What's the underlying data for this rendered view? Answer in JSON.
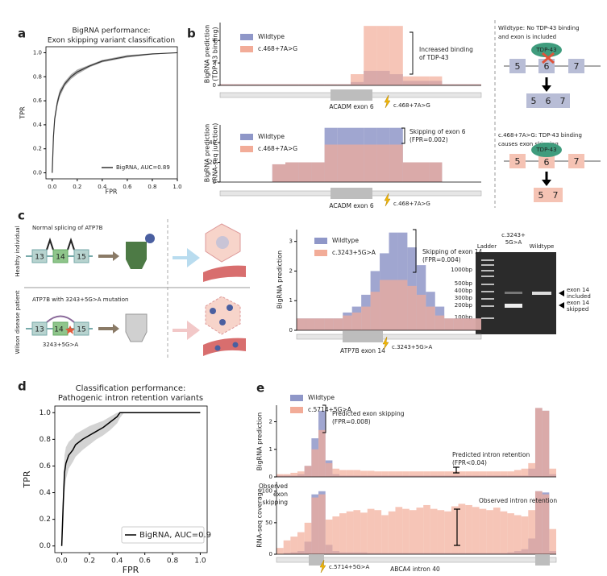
{
  "panel_labels": [
    "a",
    "b",
    "c",
    "d",
    "e"
  ],
  "chart_data": [
    {
      "type": "line",
      "title": [
        "BigRNA performance:",
        "Exon skipping variant classification"
      ],
      "xlabel": "FPR",
      "ylabel": "TPR",
      "x": [
        0,
        0.01,
        0.02,
        0.04,
        0.06,
        0.1,
        0.15,
        0.2,
        0.3,
        0.4,
        0.5,
        0.6,
        0.8,
        1.0
      ],
      "series": [
        {
          "name": "BigRNA, AUC=0.89",
          "color": "#333333",
          "values": [
            0,
            0.3,
            0.45,
            0.58,
            0.66,
            0.74,
            0.8,
            0.84,
            0.89,
            0.93,
            0.95,
            0.97,
            0.99,
            1.0
          ],
          "ci_lower": [
            0,
            0.27,
            0.42,
            0.55,
            0.63,
            0.72,
            0.78,
            0.82,
            0.88,
            0.92,
            0.94,
            0.96,
            0.985,
            1.0
          ],
          "ci_upper": [
            0,
            0.33,
            0.48,
            0.61,
            0.69,
            0.76,
            0.82,
            0.86,
            0.9,
            0.94,
            0.96,
            0.98,
            0.995,
            1.0
          ]
        }
      ],
      "band_color": "#999999",
      "xlim": [
        -0.05,
        1.0
      ],
      "ylim": [
        -0.05,
        1.05
      ],
      "xticks": [
        {
          "value": 0,
          "label": "0.0"
        },
        0.2,
        0.4,
        0.6,
        0.8,
        {
          "value": 1,
          "label": "1.0"
        }
      ],
      "yticks": [
        {
          "value": 0,
          "label": "0.0"
        },
        0.2,
        0.4,
        0.6,
        0.8,
        {
          "value": 1,
          "label": "1.0"
        }
      ],
      "legend": "lower right",
      "legend_frame": false
    },
    {
      "type": "step",
      "ylabel": [
        "BigRNA prediction",
        "(TDP-43 binding)"
      ],
      "x": [
        0,
        1,
        2,
        3,
        4,
        5,
        6,
        7,
        8,
        9,
        10,
        11,
        12,
        13,
        14,
        15,
        16,
        17,
        18,
        19
      ],
      "xlim": [
        0,
        20
      ],
      "ylim": [
        0,
        5.6
      ],
      "yticks": [
        0,
        2,
        4
      ],
      "series": [
        {
          "name": "Wildtype",
          "color": "#8f97c8",
          "values": [
            0.1,
            0.1,
            0.1,
            0.1,
            0.1,
            0.1,
            0.1,
            0.1,
            0.1,
            0.1,
            0.3,
            1.3,
            1.3,
            1.0,
            0.4,
            0.4,
            0.4,
            0.1,
            0.1,
            0.1
          ]
        },
        {
          "name": "c.468+7A>G",
          "color": "#f2ac98",
          "values": [
            0.1,
            0.1,
            0.1,
            0.1,
            0.1,
            0.1,
            0.1,
            0.1,
            0.1,
            0.1,
            1.0,
            5.3,
            5.3,
            5.3,
            0.8,
            0.8,
            0.8,
            0.1,
            0.1,
            0.1
          ]
        }
      ],
      "legend": "upper left",
      "annotations": [
        [
          "Increased binding",
          "of TDP-43"
        ]
      ],
      "gene_label": "ACADM exon 6",
      "variant_label": "c.468+7A>G"
    },
    {
      "type": "step",
      "ylabel": [
        "BigRNA prediction",
        "(RNA-seq junction)"
      ],
      "x": [
        0,
        1,
        2,
        3,
        4,
        5,
        6,
        7,
        8,
        9,
        10,
        11,
        12,
        13,
        14,
        15,
        16,
        17,
        18,
        19
      ],
      "xlim": [
        0,
        20
      ],
      "ylim": [
        0,
        58
      ],
      "yticks": [
        0,
        20,
        40
      ],
      "series": [
        {
          "name": "Wildtype",
          "color": "#8f97c8",
          "values": [
            0,
            0,
            0,
            0,
            18,
            20,
            20,
            20,
            55,
            55,
            55,
            55,
            55,
            55,
            20,
            20,
            20,
            0,
            0,
            0
          ]
        },
        {
          "name": "c.468+7A>G",
          "color": "#f2ac98",
          "values": [
            0,
            0,
            0,
            0,
            18,
            20,
            20,
            20,
            38,
            38,
            38,
            38,
            38,
            38,
            20,
            20,
            20,
            0,
            0,
            0
          ]
        }
      ],
      "legend": "upper left",
      "annotations": [
        [
          "Skipping of exon 6",
          "(FPR=0.002)"
        ]
      ],
      "gene_label": "ACADM exon 6",
      "variant_label": "c.468+7A>G"
    },
    {
      "type": "step",
      "ylabel": [
        "BigRNA prediction"
      ],
      "x": [
        0,
        1,
        2,
        3,
        4,
        5,
        6,
        7,
        8,
        9,
        10,
        11,
        12,
        13,
        14,
        15,
        16,
        17,
        18,
        19
      ],
      "xlim": [
        0,
        20
      ],
      "ylim": [
        0,
        3.4
      ],
      "yticks": [
        0,
        1,
        2,
        3
      ],
      "series": [
        {
          "name": "Wildtype",
          "color": "#8f97c8",
          "values": [
            0.4,
            0.4,
            0.4,
            0.4,
            0.4,
            0.6,
            0.8,
            1.2,
            2.0,
            2.6,
            3.3,
            3.3,
            2.8,
            2.2,
            1.3,
            0.8,
            0.4,
            0.4,
            0.4,
            0.4
          ]
        },
        {
          "name": "c.3243+5G>A",
          "color": "#f2ac98",
          "values": [
            0.4,
            0.4,
            0.4,
            0.4,
            0.4,
            0.5,
            0.6,
            0.8,
            1.3,
            1.7,
            1.7,
            1.7,
            1.5,
            1.2,
            0.8,
            0.5,
            0.4,
            0.4,
            0.4,
            0.4
          ]
        }
      ],
      "legend": "upper left",
      "annotations": [
        [
          "Skipping of exon 14",
          "(FPR=0.004)"
        ]
      ],
      "gene_label": "ATP7B exon 14",
      "variant_label": "c.3243+5G>A"
    },
    {
      "type": "line",
      "title": [
        "Classification performance:",
        "Pathogenic intron retention variants"
      ],
      "xlabel": "FPR",
      "ylabel": "TPR",
      "x": [
        0,
        0.01,
        0.02,
        0.03,
        0.05,
        0.08,
        0.1,
        0.15,
        0.2,
        0.25,
        0.3,
        0.35,
        0.4,
        0.42,
        0.45,
        0.6,
        0.8,
        1.0
      ],
      "series": [
        {
          "name": "BigRNA, AUC=0.9",
          "color": "#000000",
          "values": [
            0,
            0.3,
            0.55,
            0.62,
            0.68,
            0.72,
            0.76,
            0.8,
            0.83,
            0.86,
            0.89,
            0.93,
            0.97,
            1.0,
            1.0,
            1.0,
            1.0,
            1.0
          ],
          "ci_lower": [
            0,
            0.15,
            0.4,
            0.5,
            0.58,
            0.63,
            0.67,
            0.72,
            0.76,
            0.8,
            0.83,
            0.87,
            0.92,
            0.96,
            1.0,
            1.0,
            1.0,
            1.0
          ],
          "ci_upper": [
            0,
            0.45,
            0.68,
            0.74,
            0.78,
            0.81,
            0.84,
            0.87,
            0.9,
            0.92,
            0.94,
            0.97,
            1.0,
            1.0,
            1.0,
            1.0,
            1.0,
            1.0
          ]
        }
      ],
      "band_color": "#c8c8c8",
      "xlim": [
        -0.05,
        1.05
      ],
      "ylim": [
        -0.05,
        1.05
      ],
      "xticks": [
        {
          "value": 0,
          "label": "0.0"
        },
        0.2,
        0.4,
        0.6,
        0.8,
        {
          "value": 1,
          "label": "1.0"
        }
      ],
      "yticks": [
        {
          "value": 0,
          "label": "0.0"
        },
        0.2,
        0.4,
        0.6,
        0.8,
        {
          "value": 1,
          "label": "1.0"
        }
      ],
      "legend": "lower right",
      "legend_frame": true
    },
    {
      "type": "step",
      "ylabel": [
        "BigRNA prediction"
      ],
      "x": [
        0,
        1,
        2,
        3,
        4,
        5,
        6,
        7,
        8,
        9,
        10,
        11,
        12,
        13,
        14,
        15,
        16,
        17,
        18,
        19,
        20,
        21,
        22,
        23,
        24,
        25,
        26,
        27,
        28,
        29,
        30,
        31,
        32,
        33,
        34,
        35,
        36,
        37,
        38,
        39
      ],
      "xlim": [
        0,
        40
      ],
      "ylim": [
        0,
        2.6
      ],
      "yticks": [
        0,
        1,
        2
      ],
      "series": [
        {
          "name": "Wildtype",
          "color": "#8f97c8",
          "values": [
            0.05,
            0.05,
            0.05,
            0.1,
            0.4,
            1.4,
            2.4,
            0.6,
            0.1,
            0.05,
            0.05,
            0.05,
            0.05,
            0.05,
            0.05,
            0.05,
            0.05,
            0.05,
            0.05,
            0.05,
            0.05,
            0.05,
            0.05,
            0.05,
            0.05,
            0.05,
            0.05,
            0.05,
            0.05,
            0.05,
            0.05,
            0.05,
            0.05,
            0.05,
            0.05,
            0.05,
            0.3,
            2.5,
            2.4,
            0.1
          ]
        },
        {
          "name": "c.5714+5G>A",
          "color": "#f2ac98",
          "values": [
            0.1,
            0.1,
            0.15,
            0.2,
            0.4,
            1.0,
            1.7,
            0.5,
            0.3,
            0.25,
            0.25,
            0.25,
            0.22,
            0.22,
            0.2,
            0.2,
            0.2,
            0.2,
            0.2,
            0.2,
            0.2,
            0.2,
            0.2,
            0.2,
            0.2,
            0.2,
            0.2,
            0.2,
            0.2,
            0.2,
            0.2,
            0.2,
            0.2,
            0.2,
            0.25,
            0.3,
            0.5,
            2.5,
            2.4,
            0.3
          ]
        }
      ],
      "legend": "upper left",
      "annotations": [
        [
          "Predicted exon skipping",
          "(FPR=0.008)"
        ],
        [
          "Predicted intron retention",
          "(FPR<0.04)"
        ]
      ]
    },
    {
      "type": "step",
      "ylabel": [
        "RNA-seq coverage"
      ],
      "x": [
        0,
        1,
        2,
        3,
        4,
        5,
        6,
        7,
        8,
        9,
        10,
        11,
        12,
        13,
        14,
        15,
        16,
        17,
        18,
        19,
        20,
        21,
        22,
        23,
        24,
        25,
        26,
        27,
        28,
        29,
        30,
        31,
        32,
        33,
        34,
        35,
        36,
        37,
        38,
        39
      ],
      "xlim": [
        0,
        40
      ],
      "ylim": [
        0,
        115
      ],
      "yticks": [
        0,
        50,
        100
      ],
      "series": [
        {
          "color": "#8f97c8",
          "values": [
            0,
            2,
            3,
            5,
            20,
            95,
            100,
            15,
            5,
            3,
            3,
            3,
            3,
            2,
            2,
            2,
            2,
            2,
            2,
            2,
            2,
            2,
            2,
            2,
            2,
            2,
            2,
            2,
            2,
            2,
            2,
            2,
            2,
            3,
            5,
            8,
            25,
            100,
            98,
            5
          ]
        },
        {
          "color": "#f2ac98",
          "values": [
            10,
            22,
            28,
            35,
            50,
            90,
            95,
            55,
            60,
            65,
            68,
            70,
            66,
            72,
            70,
            62,
            68,
            75,
            72,
            70,
            74,
            78,
            72,
            70,
            68,
            76,
            80,
            78,
            75,
            72,
            70,
            74,
            68,
            65,
            62,
            60,
            70,
            100,
            95,
            40
          ]
        }
      ],
      "annotations": [
        [
          "Observed",
          "exon",
          "skipping"
        ],
        [
          "Observed intron retention"
        ]
      ],
      "gene_label": "ABCA4 intron 40",
      "variant_label": "c.5714+5G>A"
    }
  ],
  "b_diagram": {
    "wildtype": {
      "caption": [
        "Wildtype: No TDP-43 binding",
        "and exon is included"
      ],
      "protein": "TDP-43",
      "exons": [
        "5",
        "6",
        "7"
      ],
      "result": [
        "5",
        "6",
        "7"
      ]
    },
    "mutant": {
      "caption": [
        "c.468+7A>G: TDP-43 binding",
        "causes exon skipping"
      ],
      "protein": "TDP-43",
      "exons": [
        "5",
        "6",
        "7"
      ],
      "result": [
        "5",
        "7"
      ]
    }
  },
  "c_diagram": {
    "healthy": {
      "side_label": "Healthy individual",
      "title": "Normal splicing of ATP7B",
      "exons": [
        "13",
        "14",
        "15"
      ]
    },
    "patient": {
      "side_label": "Wilson disease patient",
      "title": "ATP7B with 3243+5G>A mutation",
      "exons": [
        "13",
        "14",
        "15"
      ],
      "mutation": "3243+5G>A"
    }
  },
  "gel": {
    "lanes": [
      [
        "Ladder"
      ],
      [
        "c.3243+",
        "5G>A"
      ],
      [
        "Wildtype"
      ]
    ],
    "ladder_sizes": [
      "1000bp",
      "500bp",
      "400bp",
      "300bp",
      "200bp",
      "100bp"
    ],
    "bands": [
      [
        "exon 14",
        "included"
      ],
      [
        "exon 14",
        "skipped"
      ]
    ]
  }
}
